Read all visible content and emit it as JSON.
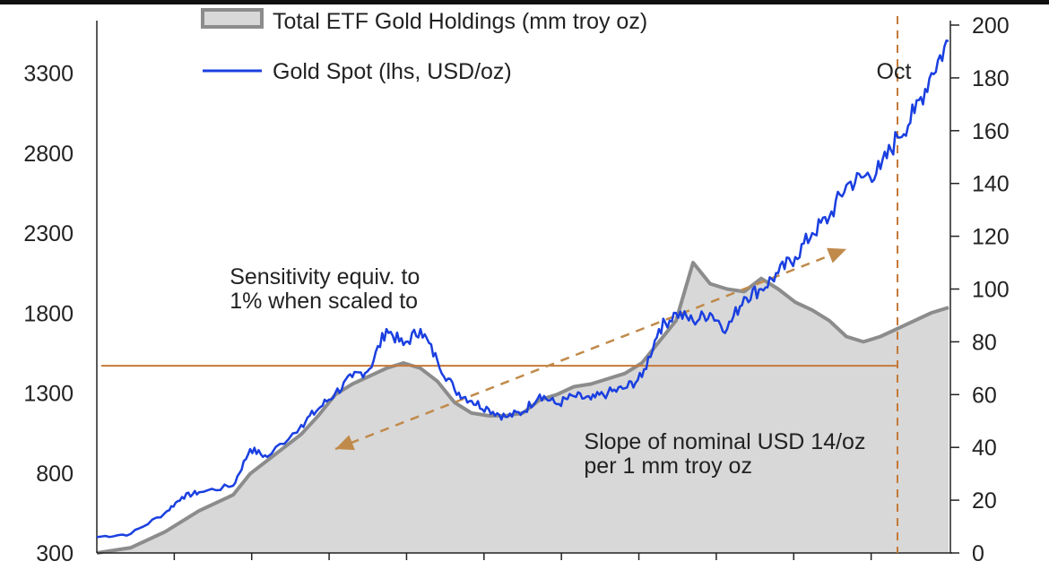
{
  "chart_data": {
    "type": "line",
    "title": "",
    "legend": [
      {
        "label": "Total ETF Gold Holdings (mm troy oz)",
        "color": "#8c8c8c",
        "fill": "#d8d8d8",
        "style": "area"
      },
      {
        "label": "Gold Spot (lhs, USD/oz)",
        "color": "#1a3fe0",
        "style": "line"
      }
    ],
    "legend_position": "top-left",
    "left_axis": {
      "label": "",
      "ylim": [
        300,
        3600
      ],
      "ticks": [
        "300",
        "800",
        "1300",
        "1800",
        "2300",
        "2800",
        "3300"
      ]
    },
    "right_axis": {
      "label": "",
      "ylim": [
        0,
        200
      ],
      "ticks": [
        "0",
        "20",
        "40",
        "60",
        "80",
        "100",
        "120",
        "140",
        "160",
        "180",
        "200"
      ]
    },
    "x_index_range": [
      0,
      25
    ],
    "series": [
      {
        "name": "Gold Spot (lhs, USD/oz)",
        "axis": "left",
        "x": [
          0,
          1,
          2,
          2.5,
          3,
          4,
          4.5,
          5,
          6,
          6.5,
          7,
          7.5,
          8,
          8.5,
          9,
          9.5,
          10,
          10.5,
          11,
          11.5,
          12,
          12.5,
          13,
          13.5,
          14,
          14.5,
          15,
          15.5,
          16,
          16.5,
          17,
          17.5,
          18,
          18.5,
          19,
          19.5,
          20,
          20.5,
          21,
          21.5,
          22,
          22.5,
          23,
          23.5,
          24,
          24.5,
          25
        ],
        "values": [
          400,
          420,
          550,
          650,
          680,
          720,
          950,
          900,
          1100,
          1200,
          1300,
          1400,
          1450,
          1700,
          1600,
          1700,
          1500,
          1320,
          1250,
          1200,
          1150,
          1180,
          1290,
          1230,
          1280,
          1260,
          1300,
          1330,
          1400,
          1700,
          1800,
          1750,
          1800,
          1700,
          1900,
          1950,
          2050,
          2150,
          2300,
          2400,
          2600,
          2650,
          2700,
          2900,
          3050,
          3300,
          3500
        ]
      },
      {
        "name": "Total ETF Gold Holdings (mm troy oz)",
        "axis": "right",
        "x": [
          0,
          1,
          2,
          2.5,
          3,
          4,
          4.5,
          5,
          6,
          6.5,
          7,
          7.5,
          8,
          8.5,
          9,
          9.5,
          10,
          10.5,
          11,
          11.5,
          12,
          12.5,
          13,
          13.5,
          14,
          14.5,
          15,
          15.5,
          16,
          16.5,
          17,
          17.5,
          18,
          18.5,
          19,
          19.5,
          20,
          20.5,
          21,
          21.5,
          22,
          22.5,
          23,
          23.5,
          24,
          24.5,
          25
        ],
        "values": [
          0,
          2,
          8,
          12,
          16,
          22,
          30,
          35,
          45,
          52,
          60,
          64,
          67,
          70,
          72,
          70,
          65,
          57,
          53,
          52,
          52,
          53,
          58,
          60,
          63,
          64,
          66,
          68,
          72,
          80,
          88,
          110,
          102,
          100,
          99,
          104,
          100,
          95,
          92,
          88,
          82,
          80,
          82,
          85,
          88,
          91,
          93
        ]
      }
    ],
    "hline": {
      "axis": "left",
      "value": 1470,
      "color": "#c47a3a"
    },
    "vline": {
      "x": 23.5,
      "label": "Oct",
      "color": "#c47a3a"
    },
    "arrow": {
      "from": [
        7,
        950
      ],
      "to": [
        22,
        2200
      ],
      "color": "#c08a4a"
    },
    "annotations": [
      {
        "text": "Sensitivity equiv. to",
        "x": 3.9,
        "y": 1980
      },
      {
        "text": "1% when scaled to",
        "x": 3.9,
        "y": 1830
      },
      {
        "text": "Slope of nominal USD 14/oz",
        "x": 14.3,
        "y": 950
      },
      {
        "text": "per 1 mm troy oz",
        "x": 14.3,
        "y": 800
      }
    ]
  }
}
